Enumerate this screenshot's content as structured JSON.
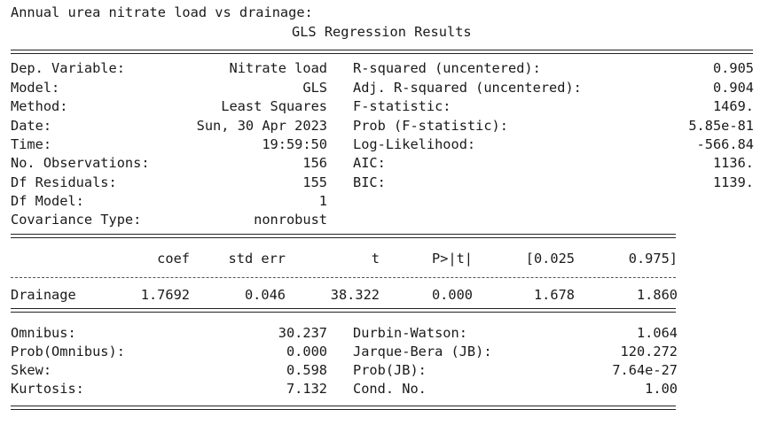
{
  "heading": "Annual urea nitrate load vs drainage:",
  "title": "GLS Regression Results",
  "summary_left": [
    {
      "label": "Dep. Variable:",
      "value": "Nitrate load"
    },
    {
      "label": "Model:",
      "value": "GLS"
    },
    {
      "label": "Method:",
      "value": "Least Squares"
    },
    {
      "label": "Date:",
      "value": "Sun, 30 Apr 2023"
    },
    {
      "label": "Time:",
      "value": "19:59:50"
    },
    {
      "label": "No. Observations:",
      "value": "156"
    },
    {
      "label": "Df Residuals:",
      "value": "155"
    },
    {
      "label": "Df Model:",
      "value": "1"
    },
    {
      "label": "Covariance Type:",
      "value": "nonrobust"
    }
  ],
  "summary_right": [
    {
      "label": "R-squared (uncentered):",
      "value": "0.905"
    },
    {
      "label": "Adj. R-squared (uncentered):",
      "value": "0.904"
    },
    {
      "label": "F-statistic:",
      "value": "1469."
    },
    {
      "label": "Prob (F-statistic):",
      "value": "5.85e-81"
    },
    {
      "label": "Log-Likelihood:",
      "value": "-566.84"
    },
    {
      "label": "AIC:",
      "value": "1136."
    },
    {
      "label": "BIC:",
      "value": "1139."
    }
  ],
  "coef_headers": [
    "coef",
    "std err",
    "t",
    "P>|t|",
    "[0.025",
    "0.975]"
  ],
  "coef_rows": [
    {
      "name": "Drainage",
      "values": [
        "1.7692",
        "0.046",
        "38.322",
        "0.000",
        "1.678",
        "1.860"
      ]
    }
  ],
  "diag_left": [
    {
      "label": "Omnibus:",
      "value": "30.237"
    },
    {
      "label": "Prob(Omnibus):",
      "value": "0.000"
    },
    {
      "label": "Skew:",
      "value": "0.598"
    },
    {
      "label": "Kurtosis:",
      "value": "7.132"
    }
  ],
  "diag_right": [
    {
      "label": "Durbin-Watson:",
      "value": "1.064"
    },
    {
      "label": "Jarque-Bera (JB):",
      "value": "120.272"
    },
    {
      "label": "Prob(JB):",
      "value": "7.64e-27"
    },
    {
      "label": "Cond. No.",
      "value": "1.00"
    }
  ]
}
